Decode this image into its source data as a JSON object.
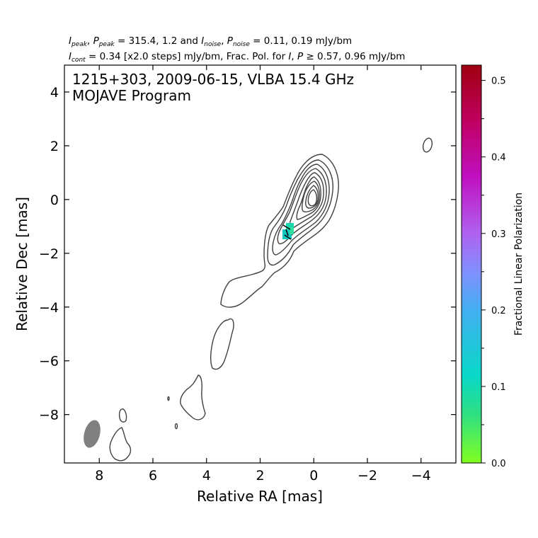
{
  "chart_data": {
    "type": "contour",
    "header_line1": "I_peak, P_peak = 315.4, 1.2 and I_noise, P_noise = 0.11, 0.19 mJy/bm",
    "header_line2": "I_cont = 0.34 [x2.0 steps] mJy/bm, Frac. Pol. for I, P ≥ 0.57, 0.96 mJy/bm",
    "annotation_line1": "1215+303, 2009-06-15, VLBA 15.4 GHz",
    "annotation_line2": "MOJAVE Program",
    "xlabel": "Relative RA [mas]",
    "ylabel": "Relative Dec [mas]",
    "xlim": [
      9.3,
      -5.3
    ],
    "ylim": [
      -9.8,
      5.0
    ],
    "xticks": [
      8,
      6,
      4,
      2,
      0,
      -2,
      -4
    ],
    "xtick_labels": [
      "8",
      "6",
      "4",
      "2",
      "0",
      "−2",
      "−4"
    ],
    "yticks": [
      4,
      2,
      0,
      -2,
      -4,
      -6,
      -8
    ],
    "ytick_labels": [
      "4",
      "2",
      "0",
      "−2",
      "−4",
      "−6",
      "−8"
    ],
    "colorbar": {
      "label": "Fractional Linear Polarization",
      "range": [
        0.0,
        0.52
      ],
      "ticks": [
        0.0,
        0.1,
        0.2,
        0.3,
        0.4,
        0.5
      ],
      "tick_labels": [
        "0.0",
        "0.1",
        "0.2",
        "0.3",
        "0.4",
        "0.5"
      ],
      "minor_ticks": [
        0.05,
        0.15,
        0.25,
        0.35,
        0.45
      ],
      "colors": [
        "#80ff20",
        "#30e080",
        "#08d8c8",
        "#40b0f0",
        "#8090ff",
        "#b060f0",
        "#c010c0",
        "#c00060",
        "#a00010"
      ]
    },
    "contour_levels_mjy": [
      0.34,
      0.68,
      1.36,
      2.72,
      5.44,
      10.88,
      21.76,
      43.52,
      87.04,
      174.08
    ],
    "core": {
      "ra": 0.0,
      "dec": 0.0
    },
    "polarized_region": {
      "ra": 1.0,
      "dec": -1.2,
      "frac_pol": 0.1
    },
    "beam": {
      "ra": 8.2,
      "dec": -8.75,
      "major_mas": 1.0,
      "minor_mas": 0.55,
      "color": "#808080"
    },
    "isolated_components": [
      {
        "ra": -4.2,
        "dec": 2.0
      },
      {
        "ra": 5.4,
        "dec": -7.45
      },
      {
        "ra": 5.1,
        "dec": -8.4
      }
    ]
  }
}
